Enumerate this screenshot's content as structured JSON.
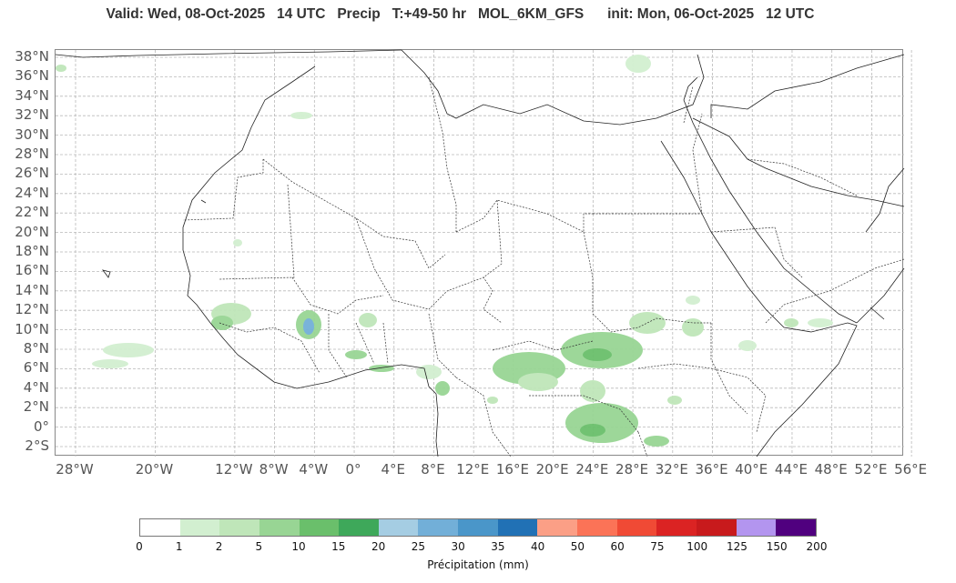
{
  "title": "Valid: Wed, 08-Oct-2025   14 UTC   Precip   T:+49-50 hr   MOL_6KM_GFS      init: Mon, 06-Oct-2025   12 UTC",
  "y_labels": [
    "38°N",
    "36°N",
    "34°N",
    "32°N",
    "30°N",
    "28°N",
    "26°N",
    "24°N",
    "22°N",
    "20°N",
    "18°N",
    "16°N",
    "14°N",
    "12°N",
    "10°N",
    "8°N",
    "6°N",
    "4°N",
    "2°N",
    "0°",
    "2°S"
  ],
  "x_labels": [
    "28°W",
    "20°W",
    "12°W",
    "8°W",
    "4°W",
    "0°",
    "4°E",
    "8°E",
    "12°E",
    "16°E",
    "20°E",
    "24°E",
    "28°E",
    "32°E",
    "36°E",
    "40°E",
    "44°E",
    "48°E",
    "52°E",
    "56°E"
  ],
  "colorbar": {
    "colors": [
      "#ffffff",
      "#d2efd0",
      "#bfe6b9",
      "#98d594",
      "#6abf6b",
      "#3ea85a",
      "#a5cde3",
      "#72afd8",
      "#4a96c9",
      "#2171b5",
      "#fb9f86",
      "#fb7357",
      "#f04a35",
      "#db2323",
      "#c81a1c",
      "#b395ef",
      "#50007f"
    ],
    "ticks": [
      "0",
      "1",
      "2",
      "5",
      "10",
      "15",
      "20",
      "25",
      "30",
      "35",
      "40",
      "50",
      "60",
      "75",
      "100",
      "125",
      "150",
      "200"
    ],
    "label": "Précipitation (mm)"
  }
}
